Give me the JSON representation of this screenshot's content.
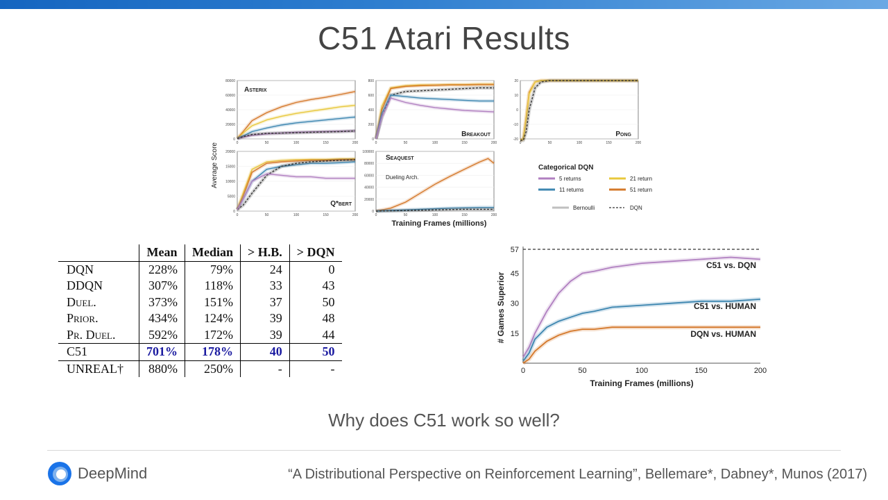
{
  "slide": {
    "title": "C51 Atari Results",
    "question": "Why does C51 work so well?",
    "citation": "“A Distributional Perspective on Reinforcement Learning”, Bellemare*, Dabney*, Munos (2017)",
    "logo_text": "DeepMind",
    "logo_icon": "deepmind-logo-icon",
    "colors": {
      "topbar": "#1e6fc8",
      "logo_blue": "#1a73e8"
    }
  },
  "figure": {
    "ylabel": "Average Score",
    "xlabel": "Training Frames (millions)",
    "legend": {
      "title": "Categorical DQN",
      "items": [
        {
          "label": "5 returns",
          "color": "#b07fc0"
        },
        {
          "label": "21 returns",
          "color": "#e8c83c"
        },
        {
          "label": "11 returns",
          "color": "#3d86b0"
        },
        {
          "label": "51 returns",
          "color": "#d4782a"
        },
        {
          "label": "Bernoulli",
          "color": "#bfbfbf"
        },
        {
          "label": "DQN",
          "color": "#333333"
        }
      ]
    },
    "dueling_annotation": "Dueling Arch."
  },
  "table": {
    "headers": [
      "",
      "Mean",
      "Median",
      "> H.B.",
      "> DQN"
    ],
    "rows": [
      {
        "name": "DQN",
        "mean": "228%",
        "median": "79%",
        "hb": "24",
        "dqn": "0"
      },
      {
        "name": "DDQN",
        "mean": "307%",
        "median": "118%",
        "hb": "33",
        "dqn": "43"
      },
      {
        "name": "Duel.",
        "mean": "373%",
        "median": "151%",
        "hb": "37",
        "dqn": "50"
      },
      {
        "name": "Prior.",
        "mean": "434%",
        "median": "124%",
        "hb": "39",
        "dqn": "48"
      },
      {
        "name": "Pr. Duel.",
        "mean": "592%",
        "median": "172%",
        "hb": "39",
        "dqn": "44"
      },
      {
        "name": "C51",
        "mean": "701%",
        "median": "178%",
        "hb": "40",
        "dqn": "50"
      },
      {
        "name": "UNREAL†",
        "mean": "880%",
        "median": "250%",
        "hb": "-",
        "dqn": "-"
      }
    ]
  },
  "chart_data": [
    {
      "type": "line",
      "title": "Asterix",
      "xlim": [
        0,
        200
      ],
      "ylim": [
        0,
        80000
      ],
      "xticks": [
        0,
        50,
        100,
        150,
        200
      ],
      "yticks": [
        0,
        20000,
        40000,
        60000,
        80000
      ],
      "x": [
        0,
        10,
        25,
        50,
        75,
        100,
        125,
        150,
        175,
        200
      ],
      "series": [
        {
          "name": "51 returns",
          "color": "#d4782a",
          "values": [
            500,
            10000,
            25000,
            36000,
            44000,
            50000,
            54000,
            57000,
            61000,
            65000
          ]
        },
        {
          "name": "21 returns",
          "color": "#e8c83c",
          "values": [
            500,
            8000,
            18000,
            26000,
            31000,
            35000,
            38000,
            41000,
            44000,
            46000
          ]
        },
        {
          "name": "11 returns",
          "color": "#3d86b0",
          "values": [
            500,
            4000,
            10000,
            15000,
            19000,
            22000,
            24000,
            26000,
            28000,
            30000
          ]
        },
        {
          "name": "5 returns",
          "color": "#b07fc0",
          "values": [
            500,
            2500,
            5000,
            7000,
            8000,
            9000,
            9500,
            10000,
            10500,
            11000
          ]
        },
        {
          "name": "DQN",
          "color": "#333333",
          "values": [
            500,
            3000,
            6000,
            7500,
            8000,
            8500,
            9000,
            9500,
            10000,
            11000
          ]
        }
      ]
    },
    {
      "type": "line",
      "title": "Breakout",
      "xlim": [
        0,
        200
      ],
      "ylim": [
        0,
        800
      ],
      "xticks": [
        0,
        50,
        100,
        150,
        200
      ],
      "yticks": [
        0,
        200,
        400,
        600,
        800
      ],
      "x": [
        0,
        10,
        25,
        50,
        75,
        100,
        125,
        150,
        175,
        200
      ],
      "series": [
        {
          "name": "21 returns",
          "color": "#e8c83c",
          "values": [
            0,
            450,
            700,
            730,
            740,
            740,
            745,
            745,
            750,
            750
          ]
        },
        {
          "name": "51 returns",
          "color": "#d4782a",
          "values": [
            0,
            400,
            690,
            720,
            730,
            735,
            740,
            740,
            745,
            745
          ]
        },
        {
          "name": "DQN",
          "color": "#333333",
          "values": [
            0,
            300,
            600,
            650,
            660,
            670,
            680,
            690,
            700,
            700
          ]
        },
        {
          "name": "11 returns",
          "color": "#3d86b0",
          "values": [
            0,
            350,
            600,
            580,
            560,
            550,
            540,
            530,
            520,
            520
          ]
        },
        {
          "name": "5 returns",
          "color": "#b07fc0",
          "values": [
            0,
            300,
            560,
            500,
            460,
            430,
            410,
            390,
            380,
            370
          ]
        }
      ]
    },
    {
      "type": "line",
      "title": "Pong",
      "xlim": [
        0,
        200
      ],
      "ylim": [
        -20,
        20
      ],
      "xticks": [
        0,
        50,
        100,
        150,
        200
      ],
      "yticks": [
        -20,
        -10,
        0,
        10,
        20
      ],
      "x": [
        0,
        5,
        10,
        15,
        25,
        35,
        50,
        100,
        150,
        200
      ],
      "series": [
        {
          "name": "51 returns",
          "color": "#d4782a",
          "values": [
            -21,
            -20,
            -5,
            12,
            19,
            20,
            20,
            20,
            20,
            20
          ]
        },
        {
          "name": "21 returns",
          "color": "#e8c83c",
          "values": [
            -21,
            -20,
            -6,
            11,
            19,
            20,
            20,
            20,
            20,
            20
          ]
        },
        {
          "name": "DQN",
          "color": "#333333",
          "values": [
            -21,
            -21,
            -15,
            0,
            15,
            19,
            20,
            20,
            20,
            20
          ]
        }
      ]
    },
    {
      "type": "line",
      "title": "Q*bert",
      "xlim": [
        0,
        200
      ],
      "ylim": [
        0,
        20000
      ],
      "xticks": [
        0,
        50,
        100,
        150,
        200
      ],
      "yticks": [
        0,
        5000,
        10000,
        15000,
        20000
      ],
      "x": [
        0,
        10,
        25,
        50,
        75,
        100,
        125,
        150,
        175,
        200
      ],
      "series": [
        {
          "name": "21 returns",
          "color": "#e8c83c",
          "values": [
            500,
            6000,
            14000,
            16500,
            17000,
            17200,
            17300,
            17300,
            17500,
            17500
          ]
        },
        {
          "name": "51 returns",
          "color": "#d4782a",
          "values": [
            500,
            5000,
            13000,
            16000,
            16500,
            16800,
            17000,
            17000,
            17200,
            17200
          ]
        },
        {
          "name": "11 returns",
          "color": "#3d86b0",
          "values": [
            500,
            4000,
            10000,
            14000,
            15000,
            15500,
            16000,
            16000,
            16200,
            16500
          ]
        },
        {
          "name": "DQN",
          "color": "#333333",
          "values": [
            500,
            2000,
            6000,
            12000,
            15000,
            16000,
            16500,
            16800,
            17000,
            17200
          ]
        },
        {
          "name": "5 returns",
          "color": "#b07fc0",
          "values": [
            500,
            4000,
            10000,
            12500,
            12000,
            11500,
            11500,
            11000,
            11000,
            11000
          ]
        }
      ]
    },
    {
      "type": "line",
      "title": "Seaquest",
      "xlim": [
        0,
        200
      ],
      "ylim": [
        0,
        100000
      ],
      "xticks": [
        0,
        50,
        100,
        150,
        200
      ],
      "yticks": [
        0,
        20000,
        40000,
        60000,
        80000,
        100000
      ],
      "x": [
        0,
        25,
        50,
        75,
        100,
        125,
        150,
        175,
        190,
        200
      ],
      "series": [
        {
          "name": "51 returns",
          "color": "#d4782a",
          "values": [
            0,
            5000,
            15000,
            30000,
            45000,
            58000,
            70000,
            82000,
            88000,
            80000
          ]
        },
        {
          "name": "11 returns",
          "color": "#3d86b0",
          "values": [
            0,
            1000,
            2000,
            3000,
            4000,
            5000,
            5500,
            6000,
            6000,
            6000
          ]
        },
        {
          "name": "DQN",
          "color": "#333333",
          "values": [
            0,
            500,
            1000,
            1500,
            2000,
            2500,
            3000,
            3000,
            3000,
            3000
          ]
        }
      ]
    },
    {
      "type": "line",
      "xlabel": "Training Frames (millions)",
      "ylabel": "# Games Superior",
      "xlim": [
        0,
        200
      ],
      "ylim": [
        0,
        57
      ],
      "xticks": [
        0,
        50,
        100,
        150,
        200
      ],
      "yticks": [
        15,
        30,
        45,
        57
      ],
      "reference_line": {
        "y": 57
      },
      "x": [
        0,
        5,
        10,
        20,
        30,
        40,
        50,
        60,
        75,
        100,
        125,
        150,
        175,
        200
      ],
      "series": [
        {
          "label": "C51 vs. DQN",
          "color": "#b07fc0",
          "values": [
            3,
            8,
            15,
            26,
            35,
            41,
            45,
            46,
            48,
            50,
            51,
            52,
            53,
            52
          ]
        },
        {
          "label": "C51 vs. HUMAN",
          "color": "#3d86b0",
          "values": [
            1,
            5,
            12,
            18,
            21,
            23,
            25,
            26,
            28,
            29,
            30,
            31,
            31,
            32
          ]
        },
        {
          "label": "DQN vs. HUMAN",
          "color": "#d4782a",
          "values": [
            0,
            2,
            6,
            11,
            14,
            16,
            17,
            17,
            18,
            18,
            18,
            18,
            18,
            18
          ]
        }
      ]
    }
  ]
}
